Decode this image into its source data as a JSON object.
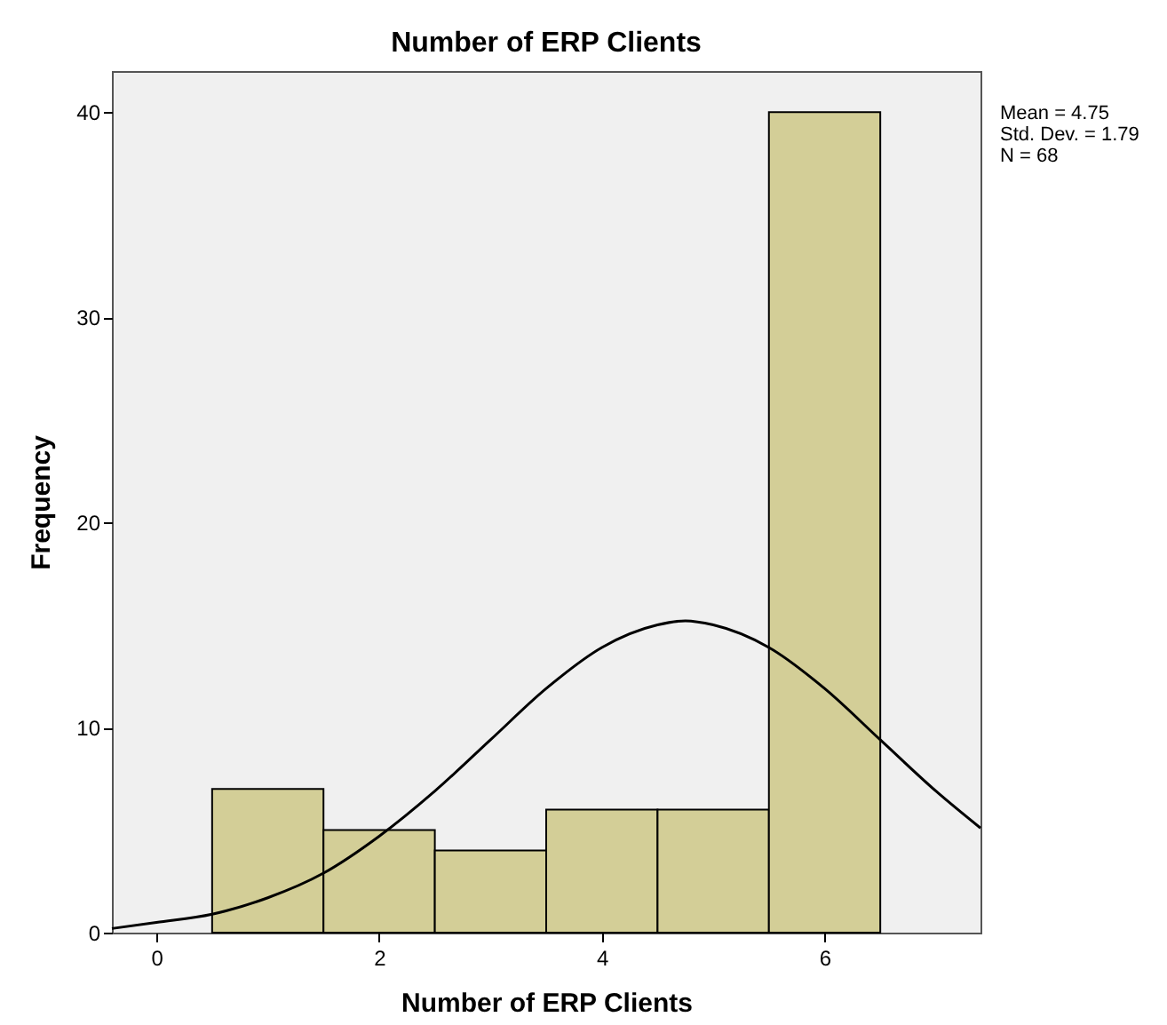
{
  "chart_data": {
    "type": "histogram",
    "title": "Number of ERP Clients",
    "xlabel": "Number of ERP Clients",
    "ylabel": "Frequency",
    "bins": [
      0.5,
      1.5,
      2.5,
      3.5,
      4.5,
      5.5,
      6.5
    ],
    "values": [
      7,
      5,
      4,
      6,
      6,
      40
    ],
    "color": "#d3ce97",
    "series": [
      {
        "type": "line",
        "color": "#000000",
        "x": [
          -0.4,
          0,
          0.5,
          1,
          1.5,
          2,
          2.5,
          3,
          3.5,
          4,
          4.5,
          4.75,
          5,
          5.5,
          6,
          6.5,
          7,
          7.4
        ],
        "values": [
          0.2,
          0.5,
          0.9,
          1.7,
          2.9,
          4.7,
          6.9,
          9.4,
          11.9,
          13.9,
          15,
          15.2,
          15,
          13.9,
          11.9,
          9.4,
          6.9,
          5.1
        ]
      }
    ],
    "xlim": [
      -0.4,
      7.4
    ],
    "xticks": [
      0,
      2,
      4,
      6
    ],
    "ylim": [
      0,
      42
    ],
    "yticks": [
      0,
      10,
      20,
      30,
      40
    ],
    "grid": false,
    "annotations": [
      "Mean = 4.75",
      "Std. Dev. = 1.79",
      "N = 68"
    ]
  }
}
